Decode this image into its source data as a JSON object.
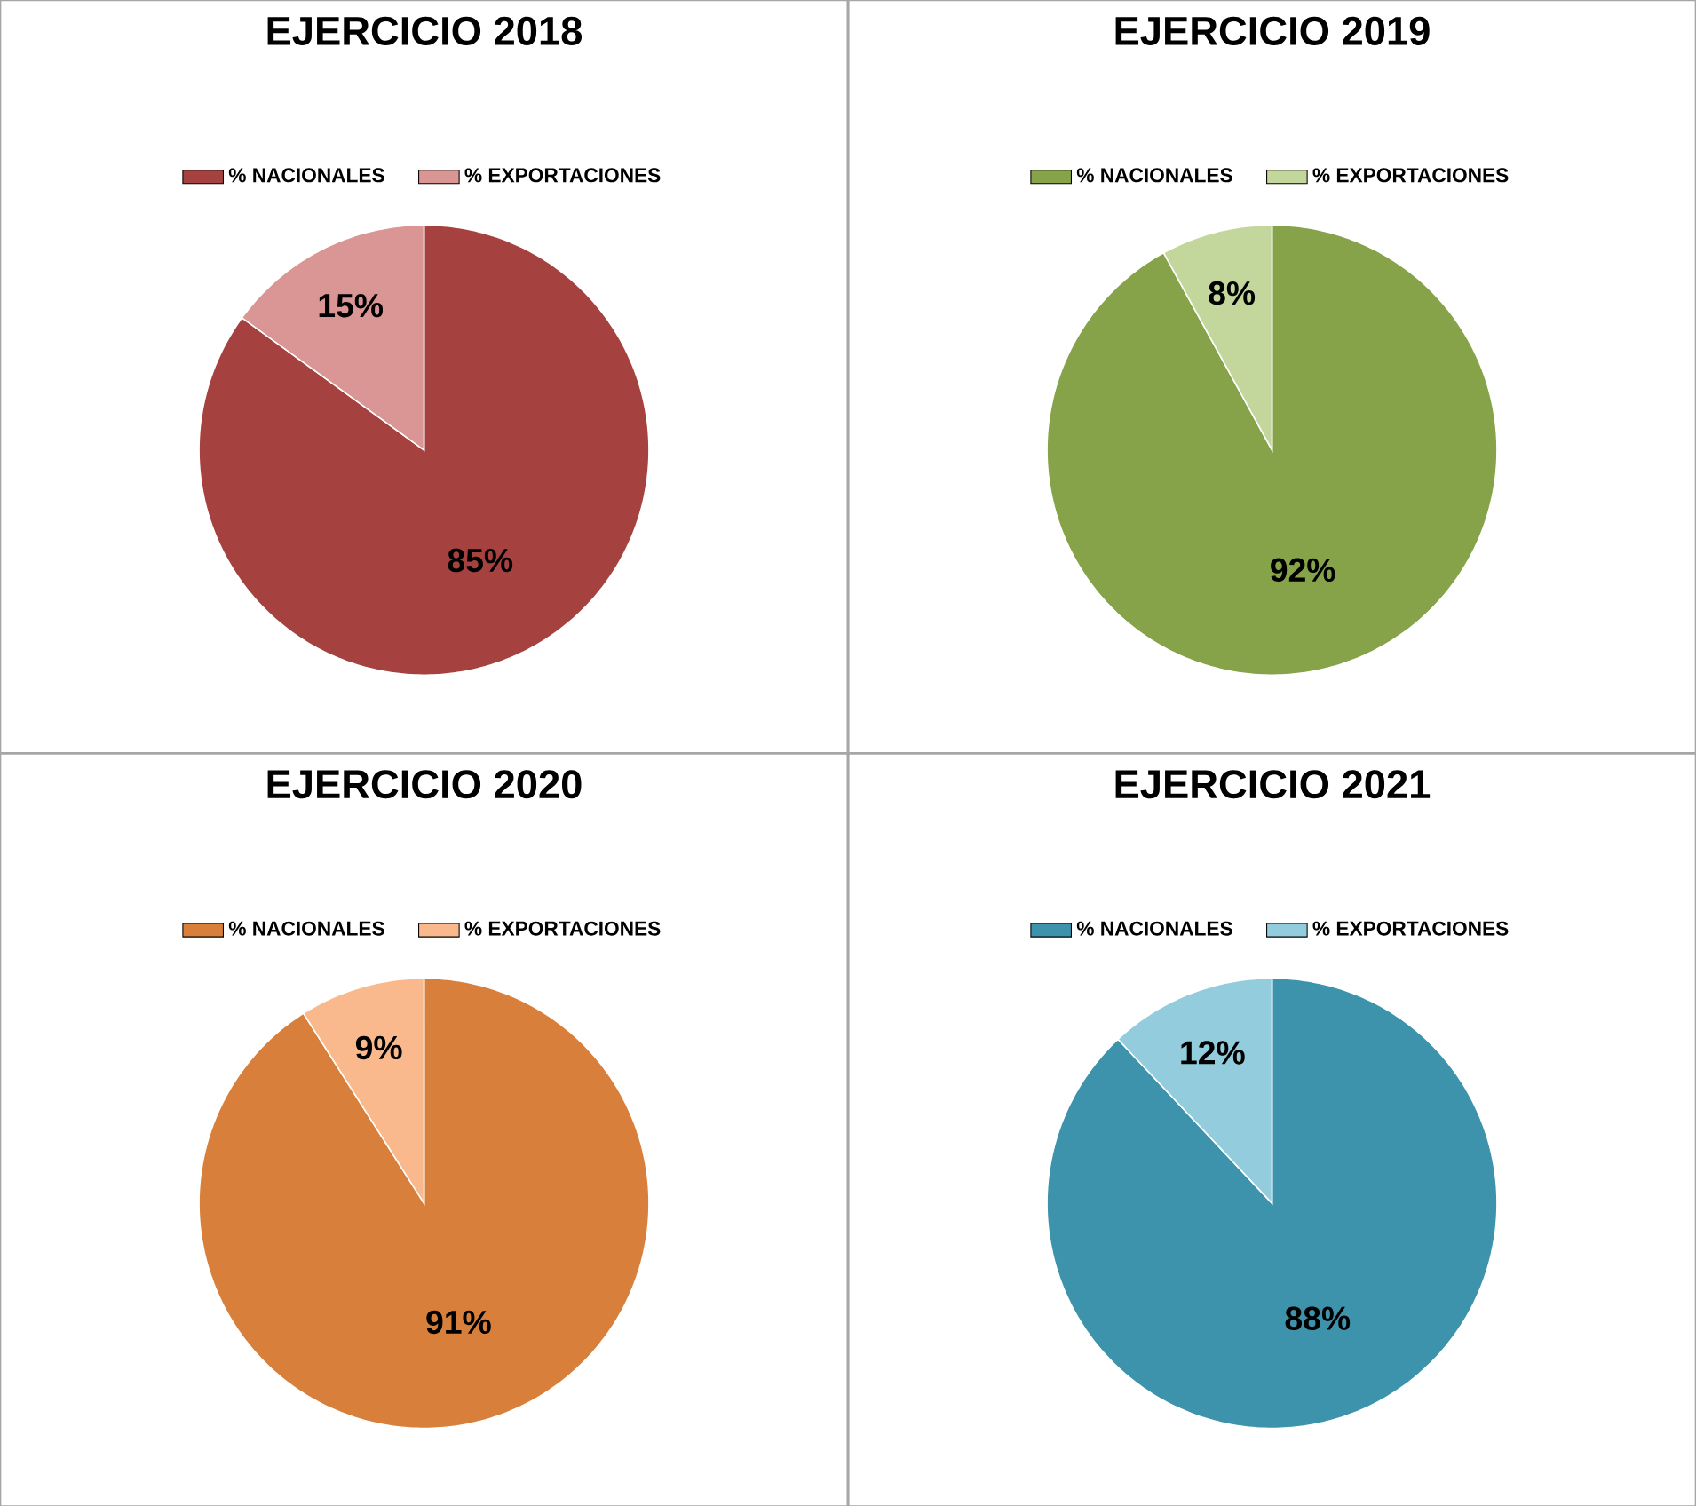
{
  "chart_data": [
    {
      "type": "pie",
      "title": "EJERCICIO 2018",
      "categories": [
        "% NACIONALES",
        "% EXPORTACIONES"
      ],
      "values": [
        85,
        15
      ],
      "colors": [
        "#a5423f",
        "#d99694"
      ],
      "value_labels": [
        "85%",
        "15%"
      ],
      "legend": "top"
    },
    {
      "type": "pie",
      "title": "EJERCICIO 2019",
      "categories": [
        "% NACIONALES",
        "% EXPORTACIONES"
      ],
      "values": [
        92,
        8
      ],
      "colors": [
        "#86a34a",
        "#c3d69b"
      ],
      "value_labels": [
        "92%",
        "8%"
      ],
      "legend": "top"
    },
    {
      "type": "pie",
      "title": "EJERCICIO 2020",
      "categories": [
        "% NACIONALES",
        "% EXPORTACIONES"
      ],
      "values": [
        91,
        9
      ],
      "colors": [
        "#d8803b",
        "#f9b98c"
      ],
      "value_labels": [
        "91%",
        "9%"
      ],
      "legend": "top"
    },
    {
      "type": "pie",
      "title": "EJERCICIO 2021",
      "categories": [
        "% NACIONALES",
        "% EXPORTACIONES"
      ],
      "values": [
        88,
        12
      ],
      "colors": [
        "#3d93ab",
        "#93cddd"
      ],
      "value_labels": [
        "88%",
        "12%"
      ],
      "legend": "top"
    }
  ]
}
